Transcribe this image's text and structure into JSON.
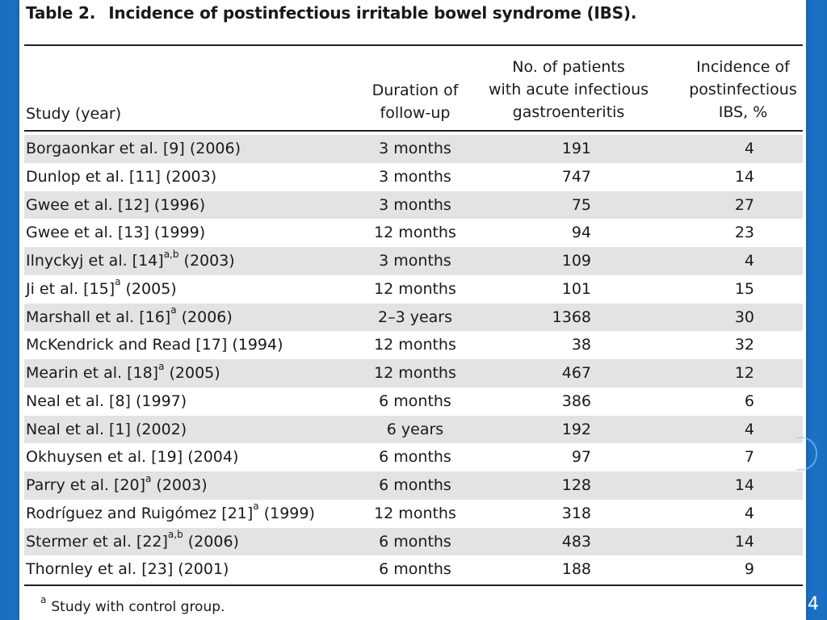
{
  "title": {
    "number": "Table 2.",
    "text": "Incidence of postinfectious irritable bowel syndrome (IBS)."
  },
  "headers": {
    "study": "Study (year)",
    "duration": [
      "Duration of",
      "follow-up"
    ],
    "patients": [
      "No. of patients",
      "with acute infectious",
      "gastroenteritis"
    ],
    "incidence": [
      "Incidence of",
      "postinfectious",
      "IBS, %"
    ]
  },
  "rows": [
    {
      "study": "Borgaonkar et al. [9]",
      "sup": "",
      "year": "(2006)",
      "duration": "3 months",
      "patients": "191",
      "incidence": "4"
    },
    {
      "study": "Dunlop et al. [11]",
      "sup": "",
      "year": "(2003)",
      "duration": "3 months",
      "patients": "747",
      "incidence": "14"
    },
    {
      "study": "Gwee et al. [12]",
      "sup": "",
      "year": "(1996)",
      "duration": "3 months",
      "patients": "75",
      "incidence": "27"
    },
    {
      "study": "Gwee et al. [13]",
      "sup": "",
      "year": "(1999)",
      "duration": "12 months",
      "patients": "94",
      "incidence": "23"
    },
    {
      "study": "Ilnyckyj et al. [14]",
      "sup": "a,b",
      "year": "(2003)",
      "duration": "3 months",
      "patients": "109",
      "incidence": "4"
    },
    {
      "study": "Ji et al. [15]",
      "sup": "a",
      "year": "(2005)",
      "duration": "12 months",
      "patients": "101",
      "incidence": "15"
    },
    {
      "study": "Marshall et al. [16]",
      "sup": "a",
      "year": "(2006)",
      "duration": "2–3 years",
      "patients": "1368",
      "incidence": "30"
    },
    {
      "study": "McKendrick and Read [17]",
      "sup": "",
      "year": "(1994)",
      "duration": "12 months",
      "patients": "38",
      "incidence": "32"
    },
    {
      "study": "Mearin et al. [18]",
      "sup": "a",
      "year": "(2005)",
      "duration": "12 months",
      "patients": "467",
      "incidence": "12"
    },
    {
      "study": "Neal et al. [8]",
      "sup": "",
      "year": "(1997)",
      "duration": "6 months",
      "patients": "386",
      "incidence": "6"
    },
    {
      "study": "Neal et al. [1]",
      "sup": "",
      "year": "(2002)",
      "duration": "6 years",
      "patients": "192",
      "incidence": "4"
    },
    {
      "study": "Okhuysen et al. [19]",
      "sup": "",
      "year": "(2004)",
      "duration": "6 months",
      "patients": "97",
      "incidence": "7"
    },
    {
      "study": "Parry et al. [20]",
      "sup": "a",
      "year": "(2003)",
      "duration": "6 months",
      "patients": "128",
      "incidence": "14"
    },
    {
      "study": "Rodríguez and Ruigómez [21]",
      "sup": "a",
      "year": "(1999)",
      "duration": "12 months",
      "patients": "318",
      "incidence": "4"
    },
    {
      "study": "Stermer et al. [22]",
      "sup": "a,b",
      "year": "(2006)",
      "duration": "6 months",
      "patients": "483",
      "incidence": "14"
    },
    {
      "study": "Thornley et al. [23]",
      "sup": "",
      "year": "(2001)",
      "duration": "6 months",
      "patients": "188",
      "incidence": "9"
    }
  ],
  "footnote": {
    "mark": "a",
    "text": "Study with control group."
  },
  "page_number": "4"
}
